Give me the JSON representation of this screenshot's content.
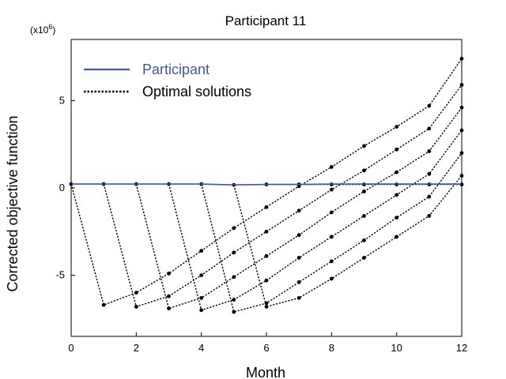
{
  "chart_data": {
    "type": "line",
    "title": "Participant 11",
    "xlabel": "Month",
    "ylabel": "Corrected objective function",
    "y_multiplier": "(x10",
    "y_multiplier_exp": "6",
    "y_multiplier_close": ")",
    "xlim": [
      0,
      12
    ],
    "ylim": [
      -8.5,
      8.5
    ],
    "xticks": [
      0,
      2,
      4,
      6,
      8,
      10,
      12
    ],
    "yticks": [
      -5,
      0,
      5
    ],
    "grid": false,
    "legend_position": "top-left",
    "participant": {
      "name": "Participant",
      "color": "#3d5a96",
      "x": [
        0,
        1,
        2,
        3,
        4,
        5,
        6,
        7,
        8,
        9,
        10,
        11,
        12
      ],
      "y": [
        0.22,
        0.22,
        0.22,
        0.22,
        0.22,
        0.17,
        0.2,
        0.2,
        0.22,
        0.22,
        0.22,
        0.22,
        0.22
      ]
    },
    "optimal": {
      "name": "Optimal solutions",
      "color": "#000000",
      "series": [
        {
          "x": [
            0,
            1,
            2,
            3,
            4,
            5,
            6,
            7,
            8,
            9,
            10,
            11,
            12
          ],
          "y": [
            0.22,
            -6.7,
            -6.0,
            -4.9,
            -3.6,
            -2.3,
            -1.1,
            0.1,
            1.2,
            2.4,
            3.5,
            4.7,
            7.4
          ]
        },
        {
          "x": [
            1,
            2,
            3,
            4,
            5,
            6,
            7,
            8,
            9,
            10,
            11,
            12
          ],
          "y": [
            0.22,
            -6.8,
            -6.2,
            -5.0,
            -3.7,
            -2.5,
            -1.3,
            -0.1,
            1.0,
            2.2,
            3.4,
            5.9
          ]
        },
        {
          "x": [
            2,
            3,
            4,
            5,
            6,
            7,
            8,
            9,
            10,
            11,
            12
          ],
          "y": [
            0.22,
            -6.9,
            -6.3,
            -5.1,
            -3.9,
            -2.7,
            -1.4,
            -0.2,
            0.9,
            2.1,
            4.6
          ]
        },
        {
          "x": [
            3,
            4,
            5,
            6,
            7,
            8,
            9,
            10,
            11,
            12
          ],
          "y": [
            0.22,
            -7.0,
            -6.4,
            -5.3,
            -4.0,
            -2.8,
            -1.6,
            -0.4,
            0.8,
            3.3
          ]
        },
        {
          "x": [
            4,
            5,
            6,
            7,
            8,
            9,
            10,
            11,
            12
          ],
          "y": [
            0.22,
            -7.1,
            -6.6,
            -5.4,
            -4.2,
            -3.0,
            -1.7,
            -0.5,
            2.0
          ]
        },
        {
          "x": [
            5,
            6,
            7,
            8,
            9,
            10,
            11,
            12
          ],
          "y": [
            0.17,
            -6.8,
            -6.3,
            -5.2,
            -4.0,
            -2.8,
            -1.6,
            0.7
          ]
        },
        {
          "x": [
            6,
            7,
            8,
            9,
            10,
            11,
            12
          ],
          "y": [
            0.2,
            0.2,
            0.2,
            0.2,
            0.2,
            0.2,
            0.2
          ]
        }
      ]
    }
  }
}
